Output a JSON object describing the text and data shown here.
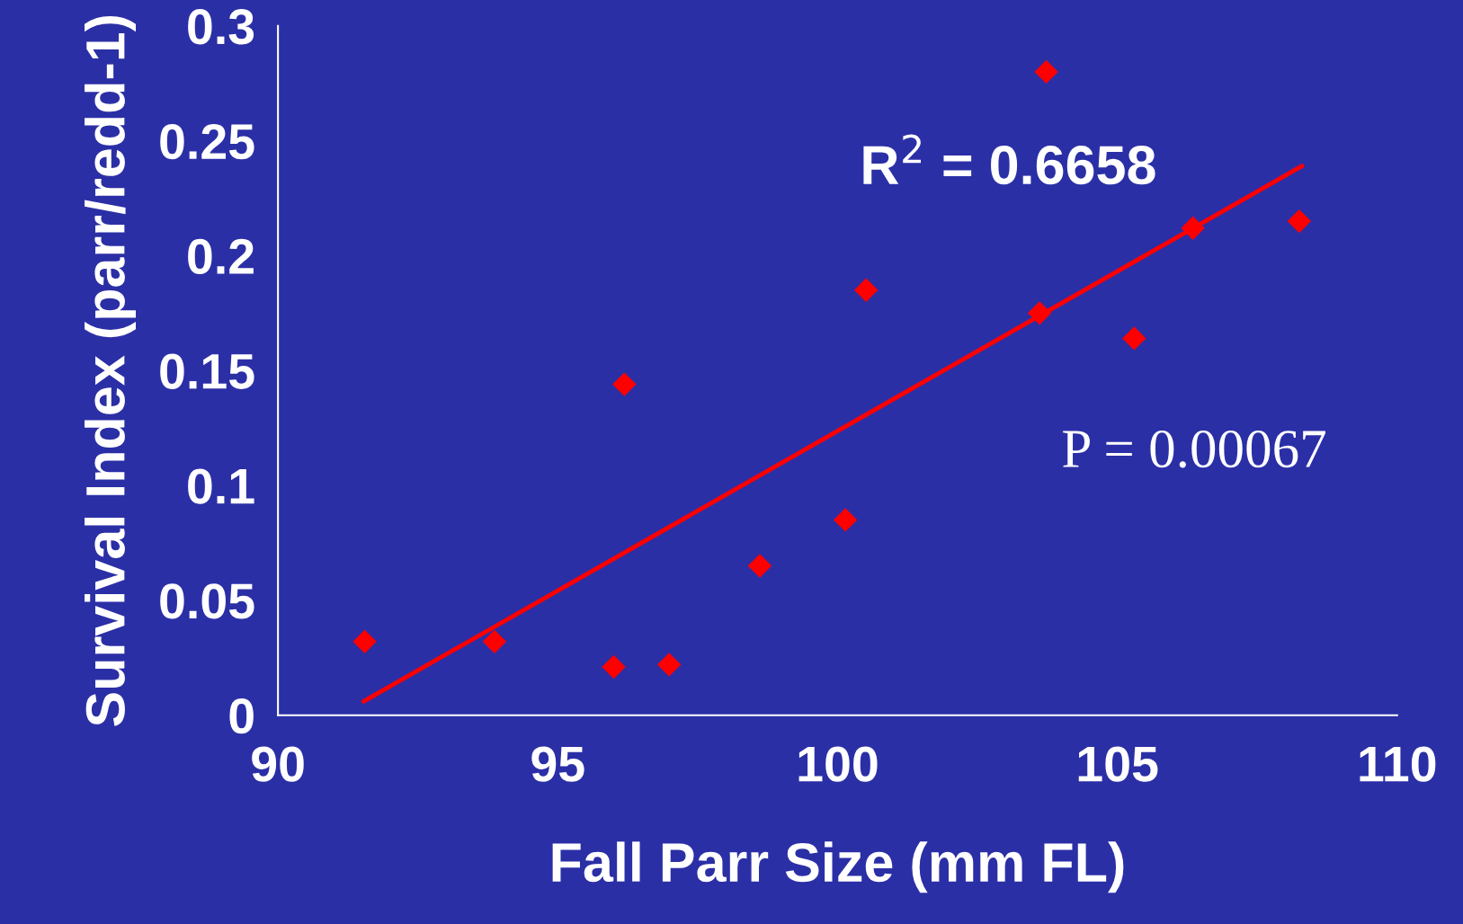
{
  "chart_data": {
    "type": "scatter",
    "xlabel": "Fall Parr Size (mm FL)",
    "ylabel": "Survival Index (parr/redd-1)",
    "xlim": [
      90,
      110
    ],
    "xticks": [
      90,
      95,
      100,
      105,
      110
    ],
    "ylim": [
      0,
      0.3
    ],
    "yticks": [
      0,
      0.05,
      0.1,
      0.15,
      0.2,
      0.25,
      0.3
    ],
    "grid": false,
    "series": [
      {
        "marker": "diamond",
        "color": "#ff0000",
        "x": [
          91.55,
          93.87,
          96.0,
          96.99,
          96.19,
          98.61,
          100.14,
          100.51,
          103.61,
          103.73,
          105.3,
          106.35,
          108.25
        ],
        "values": [
          0.032,
          0.032,
          0.021,
          0.022,
          0.144,
          0.065,
          0.085,
          0.185,
          0.175,
          0.28,
          0.164,
          0.212,
          0.215
        ]
      },
      {
        "type": "line",
        "color": "#ff0000",
        "x": [
          91.53,
          108.3
        ],
        "values": [
          0.006,
          0.239
        ]
      }
    ],
    "annotations": [
      "R$^{2}$ = 0.6658",
      "P = 0.00067"
    ]
  }
}
